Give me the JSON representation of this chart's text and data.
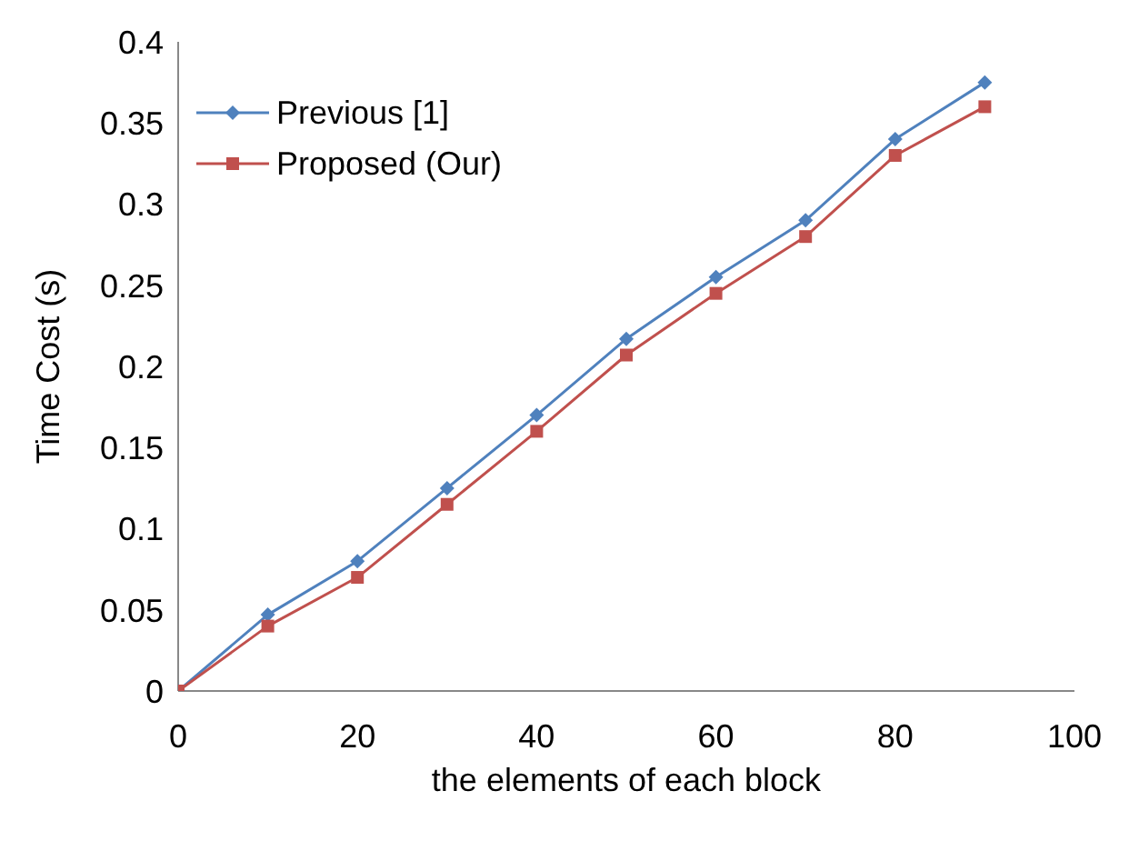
{
  "chart_data": {
    "type": "line",
    "xlabel": "the elements of each block",
    "ylabel": "Time Cost (s)",
    "x": [
      0,
      10,
      20,
      30,
      40,
      50,
      60,
      70,
      80,
      90
    ],
    "series": [
      {
        "name": "Previous [1]",
        "color": "#4f81bd",
        "marker": "diamond",
        "values": [
          0,
          0.047,
          0.08,
          0.125,
          0.17,
          0.217,
          0.255,
          0.29,
          0.34,
          0.375
        ]
      },
      {
        "name": "Proposed (Our)",
        "color": "#c0504d",
        "marker": "square",
        "values": [
          0,
          0.04,
          0.07,
          0.115,
          0.16,
          0.207,
          0.245,
          0.28,
          0.33,
          0.36
        ]
      }
    ],
    "xlim": [
      0,
      100
    ],
    "xticks": [
      0,
      20,
      40,
      60,
      80,
      100
    ],
    "ylim": [
      0,
      0.4
    ],
    "yticks": [
      0,
      0.05,
      0.1,
      0.15,
      0.2,
      0.25,
      0.3,
      0.35,
      0.4
    ],
    "grid": false,
    "legend": "top left",
    "line_style": "solid"
  }
}
